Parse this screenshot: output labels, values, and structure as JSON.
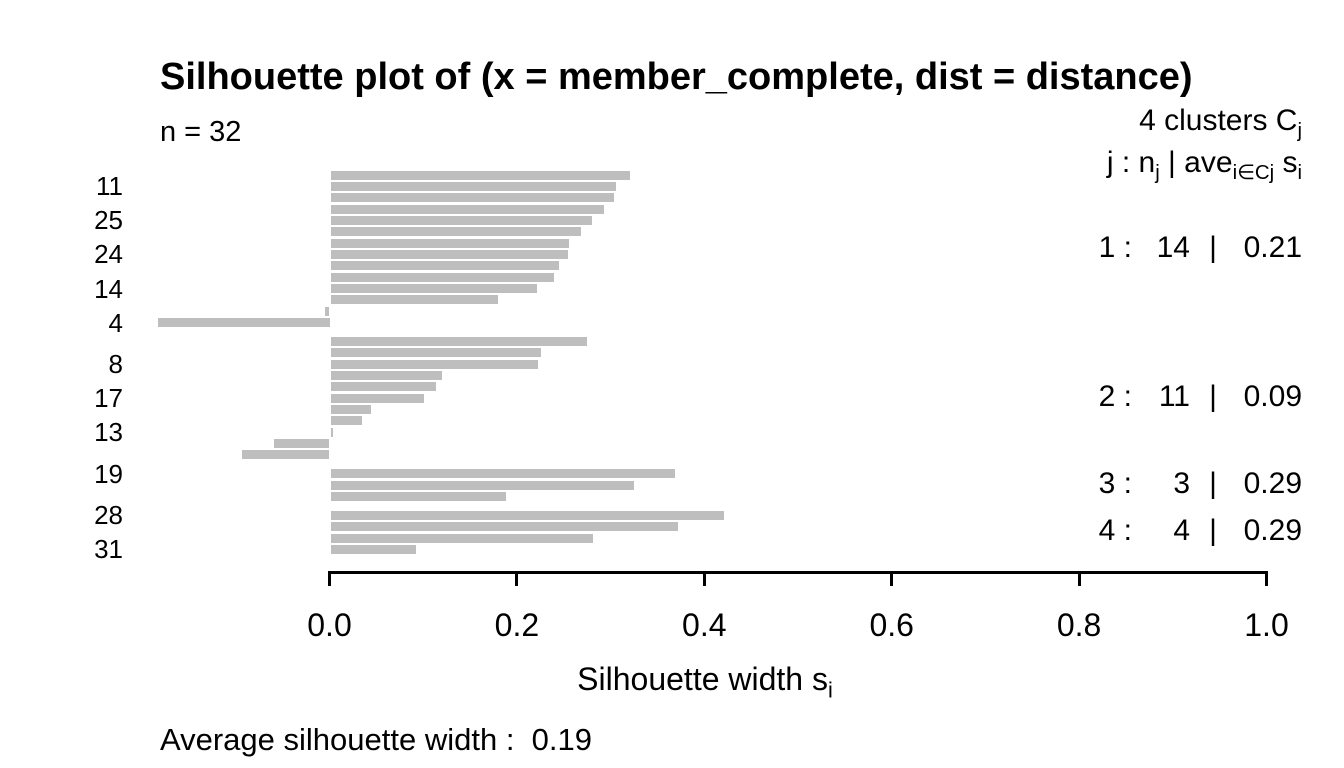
{
  "title": "Silhouette plot of (x = member_complete, dist = distance)",
  "n_label": "n = 32",
  "legend": {
    "line1": {
      "text": "4  clusters  C",
      "sub": "j"
    },
    "line2_parts": [
      {
        "t": "j :  n"
      },
      {
        "t": "j",
        "s": true
      },
      {
        "t": " | ave"
      },
      {
        "t": "i∈Cj",
        "s": true
      },
      {
        "t": " s"
      },
      {
        "t": "i",
        "s": true
      }
    ]
  },
  "x_axis": {
    "tick_labels": [
      "0.0",
      "0.2",
      "0.4",
      "0.6",
      "0.8",
      "1.0"
    ],
    "label_main": "Silhouette width s",
    "label_sub": "i"
  },
  "y_axis": {
    "visible_labels": [
      {
        "index": 1,
        "name": "11"
      },
      {
        "index": 4,
        "name": "25"
      },
      {
        "index": 7,
        "name": "24"
      },
      {
        "index": 10,
        "name": "14"
      },
      {
        "index": 13,
        "name": "4"
      },
      {
        "index": 16,
        "name": "8"
      },
      {
        "index": 19,
        "name": "17"
      },
      {
        "index": 22,
        "name": "13"
      },
      {
        "index": 25,
        "name": "19"
      },
      {
        "index": 28,
        "name": "28"
      },
      {
        "index": 31,
        "name": "31"
      }
    ]
  },
  "footer": {
    "avg_text": "Average silhouette width :  ",
    "avg_value": "0.19"
  },
  "colors": {
    "bar": "#bebebe",
    "text": "#000000",
    "background": "#ffffff"
  },
  "chart_data": {
    "type": "bar",
    "orientation": "horizontal",
    "title": "Silhouette plot of (x = member_complete, dist = distance)",
    "xlabel": "Silhouette width s_i",
    "n": 32,
    "average_silhouette_width": 0.19,
    "xticks": [
      0,
      0.2,
      0.4,
      0.6,
      0.8,
      1.0
    ],
    "xlim": [
      -0.2,
      1.0
    ],
    "grid": false,
    "clusters": [
      {
        "j": "1",
        "size": "14",
        "ave": "0.21",
        "values": [
          0.32,
          0.305,
          0.303,
          0.292,
          0.279,
          0.267,
          0.254,
          0.253,
          0.244,
          0.239,
          0.22,
          0.179,
          -0.005,
          -0.183
        ]
      },
      {
        "j": "2",
        "size": "11",
        "ave": "0.09",
        "values": [
          0.274,
          0.225,
          0.221,
          0.119,
          0.113,
          0.1,
          0.043,
          0.034,
          0.003,
          -0.059,
          -0.093
        ]
      },
      {
        "j": "3",
        "size": "3",
        "ave": "0.29",
        "values": [
          0.368,
          0.324,
          0.187
        ]
      },
      {
        "j": "4",
        "size": "4",
        "ave": "0.29",
        "values": [
          0.42,
          0.371,
          0.28,
          0.091
        ]
      }
    ],
    "visible_bar_labels": {
      "1": "11",
      "4": "25",
      "7": "24",
      "10": "14",
      "13": "4",
      "16": "8",
      "19": "17",
      "22": "13",
      "25": "19",
      "28": "28",
      "31": "31"
    }
  }
}
